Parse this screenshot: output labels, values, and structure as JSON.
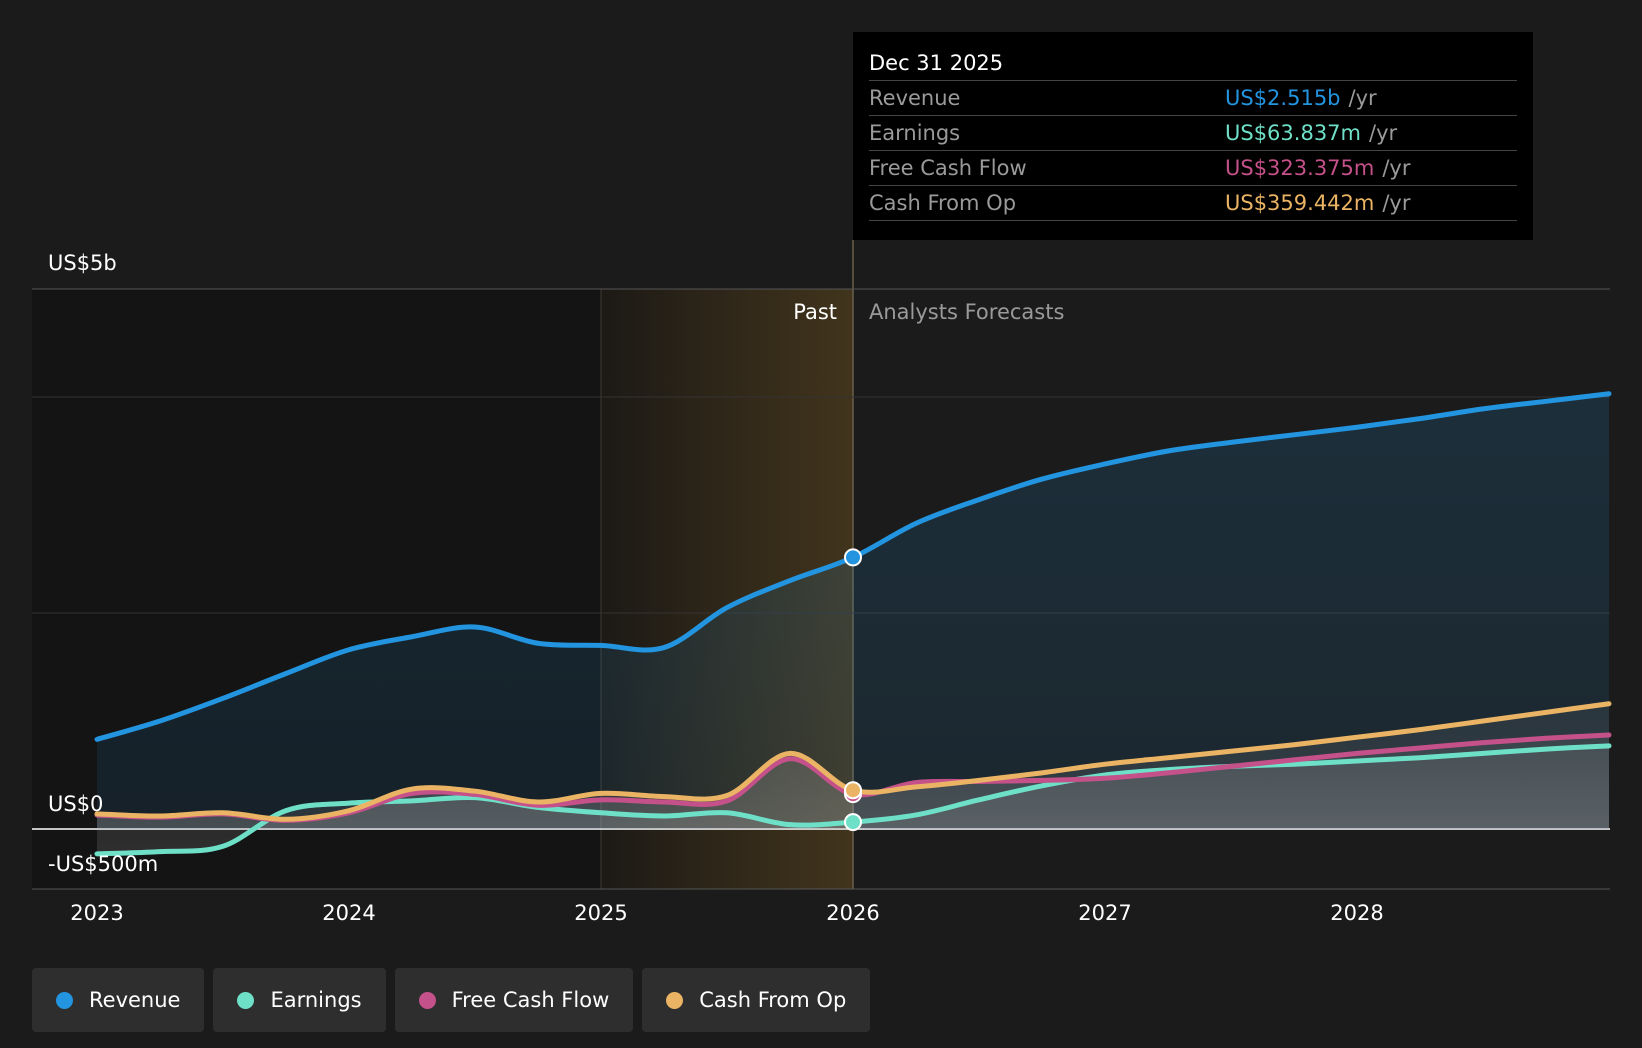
{
  "colors": {
    "revenue": "#2394df",
    "earnings": "#6fe0c8",
    "free_cash_flow": "#c5518a",
    "cash_from_op": "#eab464",
    "background": "#1b1b1b",
    "past_band": "#141414",
    "highlight_band": "#4a3a1e"
  },
  "tooltip": {
    "date": "Dec 31 2025",
    "rows": [
      {
        "name": "Revenue",
        "value": "US$2.515b",
        "unit": "/yr",
        "color": "#2394df"
      },
      {
        "name": "Earnings",
        "value": "US$63.837m",
        "unit": "/yr",
        "color": "#6fe0c8"
      },
      {
        "name": "Free Cash Flow",
        "value": "US$323.375m",
        "unit": "/yr",
        "color": "#c5518a"
      },
      {
        "name": "Cash From Op",
        "value": "US$359.442m",
        "unit": "/yr",
        "color": "#eab464"
      }
    ]
  },
  "legend": [
    {
      "label": "Revenue",
      "color": "#2394df"
    },
    {
      "label": "Earnings",
      "color": "#6fe0c8"
    },
    {
      "label": "Free Cash Flow",
      "color": "#c5518a"
    },
    {
      "label": "Cash From Op",
      "color": "#eab464"
    }
  ],
  "chart_data": {
    "type": "line",
    "x_unit": "year",
    "y_unit": "US$m",
    "ylim": [
      -500,
      5000
    ],
    "xlim": [
      2022.75,
      2029.0
    ],
    "x_ticks": [
      2023,
      2024,
      2025,
      2026,
      2027,
      2028
    ],
    "x_tick_labels": [
      "2023",
      "2024",
      "2025",
      "2026",
      "2027",
      "2028"
    ],
    "y_ticks": [
      {
        "value": 5000,
        "label": "US$5b"
      },
      {
        "value": 0,
        "label": "US$0"
      },
      {
        "value": -500,
        "label": "-US$500m"
      }
    ],
    "grid": true,
    "region_labels": {
      "past": "Past",
      "forecast": "Analysts Forecasts"
    },
    "past_end": 2026.0,
    "highlight_start": 2025.0,
    "series": [
      {
        "name": "Revenue",
        "key": "revenue",
        "x": [
          2023.0,
          2023.25,
          2023.5,
          2023.75,
          2024.0,
          2024.25,
          2024.5,
          2024.75,
          2025.0,
          2025.25,
          2025.5,
          2025.75,
          2026.0,
          2026.25,
          2026.5,
          2026.75,
          2027.0,
          2027.25,
          2027.5,
          2027.75,
          2028.0,
          2028.25,
          2028.5,
          2028.75,
          2029.0
        ],
        "y": [
          830,
          1000,
          1210,
          1440,
          1660,
          1780,
          1870,
          1720,
          1700,
          1680,
          2050,
          2300,
          2515,
          2830,
          3050,
          3240,
          3380,
          3500,
          3580,
          3650,
          3720,
          3800,
          3890,
          3960,
          4030
        ]
      },
      {
        "name": "Earnings",
        "key": "earnings",
        "x": [
          2023.0,
          2023.25,
          2023.5,
          2023.75,
          2024.0,
          2024.25,
          2024.5,
          2024.75,
          2025.0,
          2025.25,
          2025.5,
          2025.75,
          2026.0,
          2026.25,
          2026.5,
          2026.75,
          2027.0,
          2027.25,
          2027.5,
          2027.75,
          2028.0,
          2028.25,
          2028.5,
          2028.75,
          2029.0
        ],
        "y": [
          -230,
          -210,
          -160,
          170,
          240,
          260,
          290,
          200,
          150,
          120,
          150,
          40,
          64,
          130,
          270,
          400,
          500,
          550,
          580,
          600,
          630,
          660,
          700,
          740,
          770
        ]
      },
      {
        "name": "Free Cash Flow",
        "key": "free_cash_flow",
        "x": [
          2023.0,
          2023.25,
          2023.5,
          2023.75,
          2024.0,
          2024.25,
          2024.5,
          2024.75,
          2025.0,
          2025.25,
          2025.5,
          2025.75,
          2026.0,
          2026.25,
          2026.5,
          2026.75,
          2027.0,
          2027.25,
          2027.5,
          2027.75,
          2028.0,
          2028.25,
          2028.5,
          2028.75,
          2029.0
        ],
        "y": [
          130,
          110,
          140,
          80,
          150,
          330,
          320,
          220,
          270,
          250,
          260,
          650,
          323,
          430,
          440,
          450,
          470,
          520,
          580,
          640,
          700,
          750,
          800,
          840,
          870
        ]
      },
      {
        "name": "Cash From Op",
        "key": "cash_from_op",
        "x": [
          2023.0,
          2023.25,
          2023.5,
          2023.75,
          2024.0,
          2024.25,
          2024.5,
          2024.75,
          2025.0,
          2025.25,
          2025.5,
          2025.75,
          2026.0,
          2026.25,
          2026.5,
          2026.75,
          2027.0,
          2027.25,
          2027.5,
          2027.75,
          2028.0,
          2028.25,
          2028.5,
          2028.75,
          2029.0
        ],
        "y": [
          140,
          120,
          150,
          90,
          170,
          370,
          350,
          250,
          330,
          300,
          310,
          700,
          359,
          390,
          450,
          520,
          600,
          660,
          720,
          780,
          850,
          920,
          1000,
          1080,
          1160
        ]
      }
    ]
  }
}
